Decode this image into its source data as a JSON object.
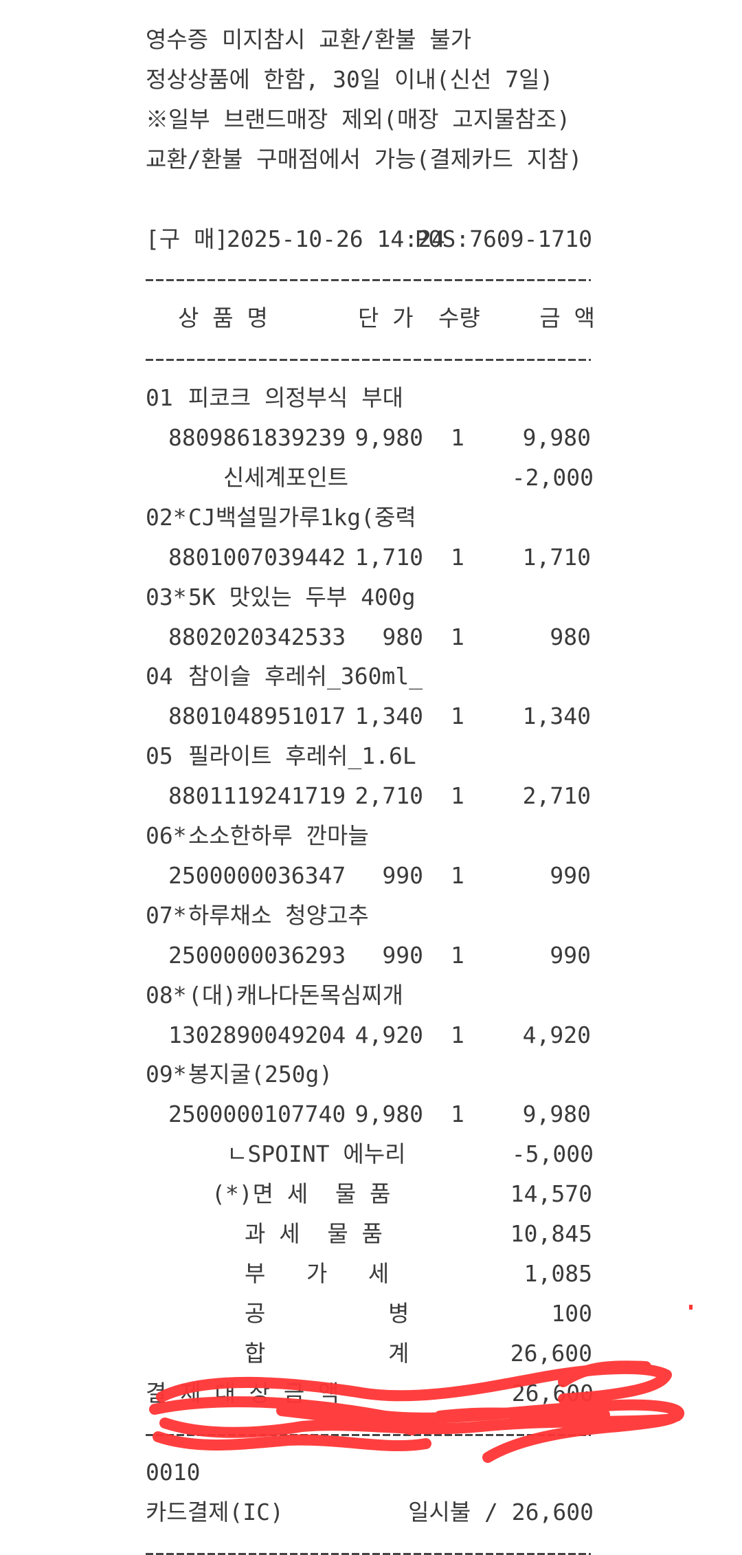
{
  "notices": [
    "영수증 미지참시 교환/환불 불가",
    "정상상품에 한함, 30일 이내(신선 7일)",
    "※일부 브랜드매장 제외(매장 고지물참조)",
    "교환/환불 구매점에서 가능(결제카드 지참)"
  ],
  "purchase": {
    "label": "[구 매]",
    "datetime": "2025-10-26 14:24",
    "pos": "POS:7609-1710"
  },
  "columns": {
    "name": "상 품 명",
    "unit_price": "단 가",
    "qty": "수량",
    "amount": "금 액"
  },
  "items": [
    {
      "no": "01 ",
      "name": "피코크 의정부식 부대",
      "code": "8809861839239",
      "price": "9,980",
      "qty": "1",
      "amount": "9,980",
      "discount_label": "신세계포인트",
      "discount": "-2,000"
    },
    {
      "no": "02*",
      "name": "CJ백설밀가루1kg(중력",
      "code": "8801007039442",
      "price": "1,710",
      "qty": "1",
      "amount": "1,710"
    },
    {
      "no": "03*",
      "name": "5K 맛있는 두부 400g",
      "code": "8802020342533",
      "price": "980",
      "qty": "1",
      "amount": "980"
    },
    {
      "no": "04 ",
      "name": "참이슬 후레쉬_360ml_",
      "code": "8801048951017",
      "price": "1,340",
      "qty": "1",
      "amount": "1,340"
    },
    {
      "no": "05 ",
      "name": "필라이트 후레쉬_1.6L",
      "code": "8801119241719",
      "price": "2,710",
      "qty": "1",
      "amount": "2,710"
    },
    {
      "no": "06*",
      "name": "소소한하루 깐마늘",
      "code": "2500000036347",
      "price": "990",
      "qty": "1",
      "amount": "990"
    },
    {
      "no": "07*",
      "name": "하루채소 청양고추",
      "code": "2500000036293",
      "price": "990",
      "qty": "1",
      "amount": "990"
    },
    {
      "no": "08*",
      "name": "(대)캐나다돈목심찌개",
      "code": "1302890049204",
      "price": "4,920",
      "qty": "1",
      "amount": "4,920"
    },
    {
      "no": "09*",
      "name": "봉지굴(250g)",
      "code": "2500000107740",
      "price": "9,980",
      "qty": "1",
      "amount": "9,980",
      "discount_label": "ㄴSPOINT 에누리",
      "discount": "-5,000"
    }
  ],
  "summary": [
    {
      "label": "(*)면 세  물 품",
      "value": "14,570"
    },
    {
      "label": "과 세  물 품",
      "value": "10,845"
    },
    {
      "label": "부   가   세",
      "value": "1,085"
    },
    {
      "label": "공         병",
      "value": "100"
    },
    {
      "label": "합         계",
      "value": "26,600"
    }
  ],
  "payment_target": {
    "label": "결 제 대 상 금 액",
    "value": "26,600"
  },
  "card_number_fragment": "0010",
  "card_payment": {
    "label": "카드결제(IC)",
    "value": "일시불 / 26,600"
  },
  "colors": {
    "text": "#3a3a3a",
    "redaction": "#ff3b3b"
  }
}
